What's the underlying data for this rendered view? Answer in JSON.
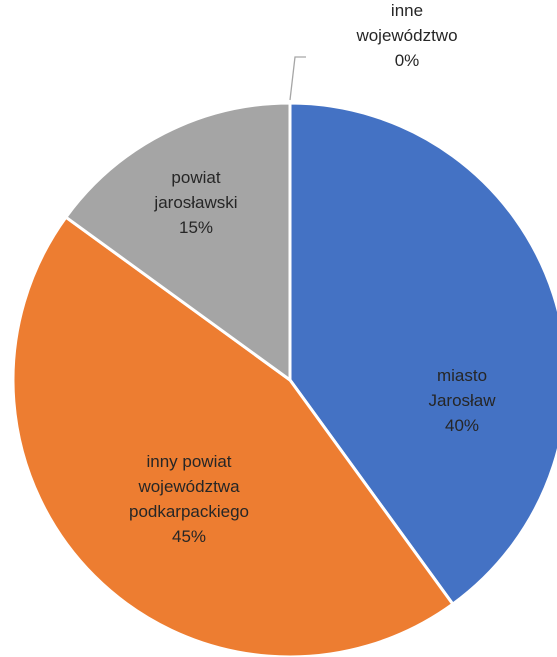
{
  "chart_data": {
    "type": "pie",
    "title": "",
    "start_angle_deg": 0,
    "direction": "clockwise",
    "legend": "none",
    "slices": [
      {
        "label_lines": [
          "miasto",
          "Jarosław"
        ],
        "value": 40,
        "value_label": "40%",
        "color": "#4472c4"
      },
      {
        "label_lines": [
          "inny powiat",
          "województwa",
          "podkarpackiego"
        ],
        "value": 45,
        "value_label": "45%",
        "color": "#ed7d31"
      },
      {
        "label_lines": [
          "powiat",
          "jarosławski"
        ],
        "value": 15,
        "value_label": "15%",
        "color": "#a5a5a5"
      },
      {
        "label_lines": [
          "inne",
          "województwo"
        ],
        "value": 0,
        "value_label": "0%",
        "color": "#ffc000"
      }
    ]
  }
}
